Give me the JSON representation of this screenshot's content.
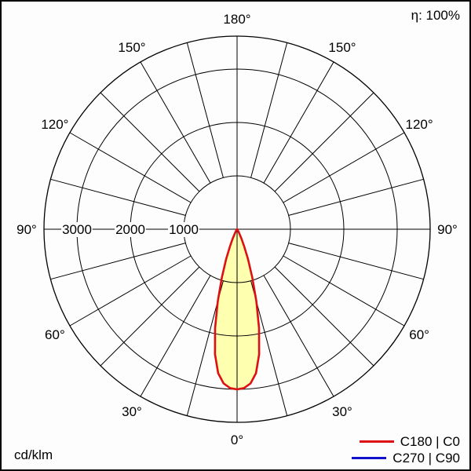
{
  "meta": {
    "efficiency_label": "η: 100%",
    "unit_label": "cd/klm"
  },
  "legend": [
    {
      "label": "C180 | C0",
      "color": "#dd1111"
    },
    {
      "label": "C270 | C90",
      "color": "#1111cc"
    }
  ],
  "chart_data": {
    "type": "polar",
    "unit": "cd/klm",
    "efficiency_percent": 100,
    "ring_values": [
      1000,
      2000,
      3000
    ],
    "angle_labels_deg": [
      0,
      30,
      60,
      90,
      120,
      150,
      180
    ],
    "spoke_step_deg": 15,
    "series": [
      {
        "name": "C180 | C0",
        "color": "#dd1111",
        "gamma_deg": [
          0,
          2.5,
          5,
          7.5,
          10,
          12.5,
          15,
          17.5,
          20,
          22.5,
          25,
          27.5,
          30,
          35,
          40,
          50,
          70,
          90
        ],
        "cd_per_klm": [
          3000,
          2980,
          2900,
          2720,
          2380,
          1900,
          1400,
          950,
          600,
          350,
          190,
          100,
          55,
          15,
          5,
          0,
          0,
          0
        ]
      },
      {
        "name": "C270 | C90",
        "color": "#1111cc",
        "gamma_deg": [
          0,
          2.5,
          5,
          7.5,
          10,
          12.5,
          15,
          17.5,
          20,
          22.5,
          25,
          27.5,
          30,
          35,
          40,
          50,
          70,
          90
        ],
        "cd_per_klm": [
          3000,
          2980,
          2900,
          2720,
          2380,
          1900,
          1400,
          950,
          600,
          350,
          190,
          100,
          55,
          15,
          5,
          0,
          0,
          0
        ]
      }
    ]
  }
}
